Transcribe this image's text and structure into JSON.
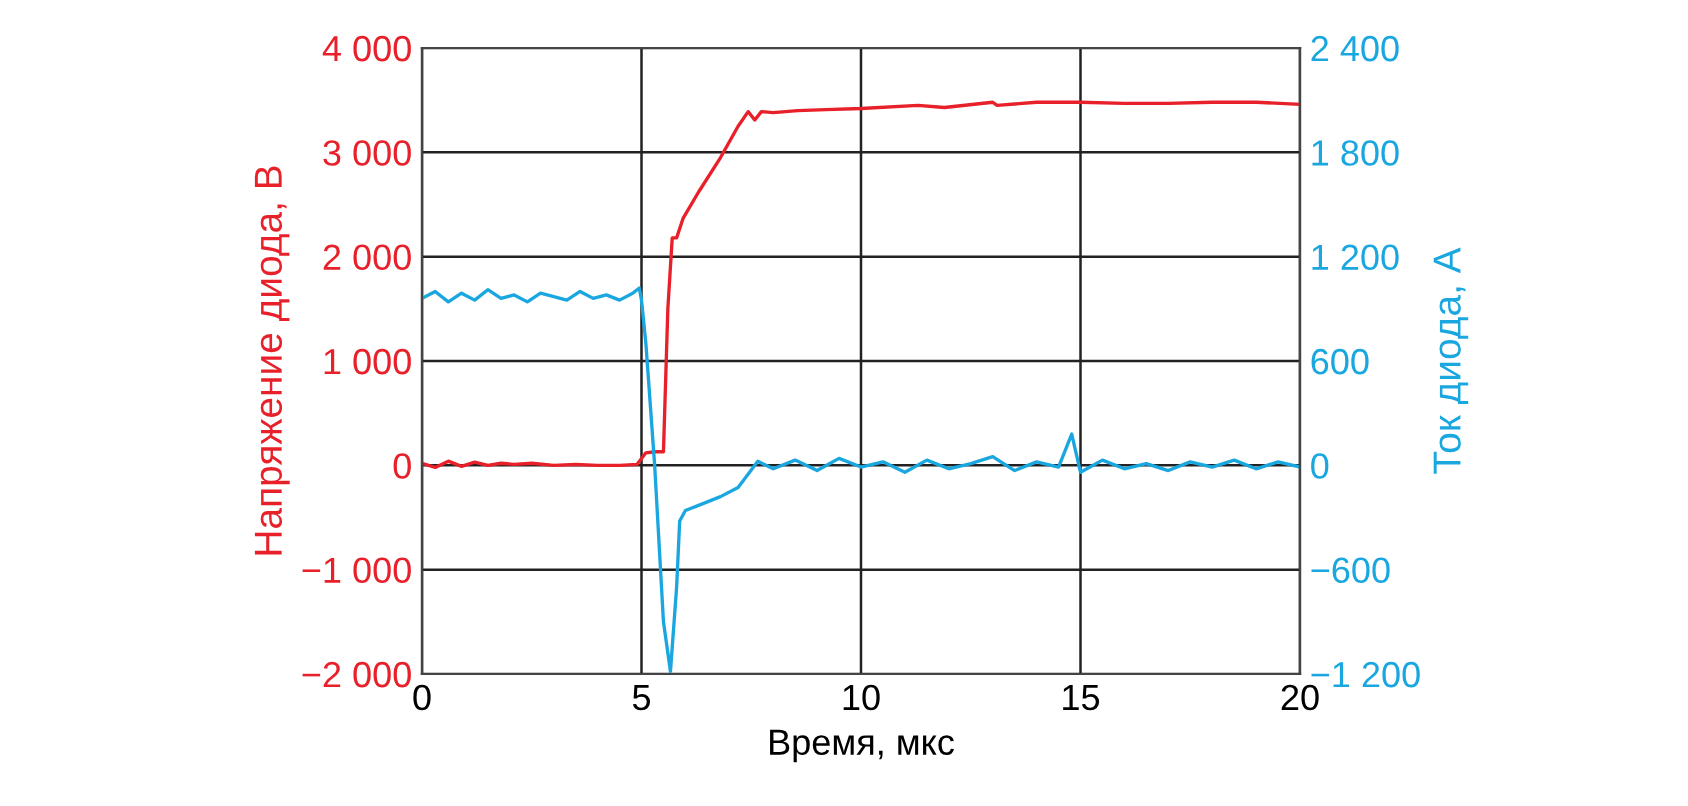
{
  "chart_data": {
    "type": "line",
    "xlabel": "Время, мкс",
    "ylabel": "Напряжение диода, В",
    "y2label": "Ток диода, А",
    "xlim": [
      0,
      20
    ],
    "xticks": [
      0,
      5,
      10,
      15,
      20
    ],
    "ylim": [
      -2000,
      4000
    ],
    "yticks": [
      {
        "value": -2000,
        "label": "−2 000"
      },
      {
        "value": -1000,
        "label": "−1 000"
      },
      0,
      {
        "value": 1000,
        "label": "1 000"
      },
      {
        "value": 2000,
        "label": "2 000"
      },
      {
        "value": 3000,
        "label": "3 000"
      },
      {
        "value": 4000,
        "label": "4 000"
      }
    ],
    "y2lim": [
      -1200,
      2400
    ],
    "y2ticks": [
      {
        "value": -1200,
        "label": "−1 200"
      },
      {
        "value": -600,
        "label": "−600"
      },
      0,
      600,
      {
        "value": 1200,
        "label": "1 200"
      },
      {
        "value": 1800,
        "label": "1 800"
      },
      {
        "value": 2400,
        "label": "2 400"
      }
    ],
    "grid": true,
    "series": [
      {
        "color": "#e8202a",
        "x": [
          0,
          0.3,
          0.6,
          0.9,
          1.2,
          1.5,
          1.8,
          2.1,
          2.5,
          3,
          3.5,
          4,
          4.5,
          4.9,
          5.1,
          5.3,
          5.5,
          5.6,
          5.7,
          5.8,
          5.95,
          6.3,
          6.8,
          7.2,
          7.43,
          7.58,
          7.73,
          8.0,
          8.56,
          9.2,
          10,
          11.3,
          11.9,
          13,
          13.1,
          14,
          15,
          16,
          17,
          18,
          19,
          20
        ],
        "values": [
          20,
          -20,
          40,
          -10,
          30,
          0,
          20,
          10,
          20,
          0,
          10,
          0,
          0,
          10,
          120,
          130,
          130,
          1500,
          2180,
          2180,
          2370,
          2620,
          2950,
          3250,
          3390,
          3310,
          3390,
          3380,
          3400,
          3410,
          3420,
          3450,
          3430,
          3480,
          3450,
          3480,
          3480,
          3470,
          3470,
          3480,
          3480,
          3460
        ]
      },
      {
        "color": "#1aa7e0",
        "axis": "y2",
        "x": [
          0,
          0.3,
          0.6,
          0.9,
          1.2,
          1.5,
          1.8,
          2.1,
          2.4,
          2.7,
          3,
          3.3,
          3.6,
          3.9,
          4.2,
          4.5,
          4.8,
          4.95,
          5.0,
          5.1,
          5.3,
          5.5,
          5.66,
          5.8,
          5.87,
          6.0,
          6.4,
          6.8,
          7.2,
          7.65,
          8,
          8.5,
          9,
          9.5,
          10,
          10.5,
          11,
          11.5,
          12,
          12.5,
          13,
          13.5,
          14,
          14.5,
          14.8,
          15,
          15.5,
          16,
          16.5,
          17,
          17.5,
          18,
          18.5,
          19,
          19.5,
          20
        ],
        "values": [
          960,
          1000,
          940,
          990,
          950,
          1010,
          960,
          980,
          940,
          990,
          970,
          950,
          1000,
          960,
          980,
          950,
          990,
          1020,
          950,
          700,
          0,
          -900,
          -1185,
          -700,
          -320,
          -260,
          -220,
          -180,
          -127,
          23,
          -20,
          30,
          -30,
          40,
          -10,
          20,
          -40,
          30,
          -20,
          10,
          50,
          -30,
          20,
          -10,
          180,
          -40,
          30,
          -20,
          10,
          -30,
          20,
          -10,
          30,
          -20,
          20,
          -10
        ]
      }
    ]
  }
}
